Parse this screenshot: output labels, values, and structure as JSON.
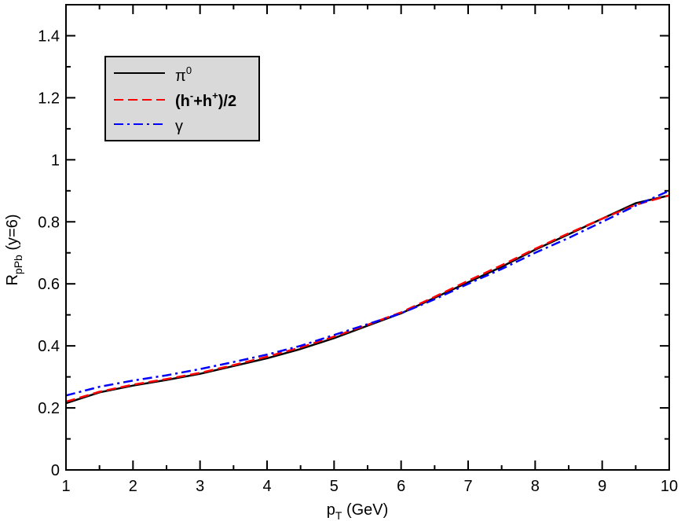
{
  "chart_data": {
    "type": "line",
    "xlim": [
      1,
      10
    ],
    "ylim": [
      0,
      1.5
    ],
    "x_ticks": [
      "1",
      "2",
      "3",
      "4",
      "5",
      "6",
      "7",
      "8",
      "9",
      "10"
    ],
    "y_ticks": [
      "0",
      "0.2",
      "0.4",
      "0.6",
      "0.8",
      "1",
      "1.2",
      "1.4"
    ],
    "xlabel": {
      "main": "p",
      "sub": "T",
      "rest": " (GeV)"
    },
    "ylabel": {
      "main": "R",
      "sub": "pPb",
      "rest": " (y=6)"
    },
    "grid": false,
    "legend_position": "top-left",
    "series": [
      {
        "name": "π⁰",
        "legend": {
          "main": "π",
          "sup": "0"
        },
        "color": "#000000",
        "dash": "solid",
        "x": [
          1,
          1.5,
          2,
          2.5,
          3,
          3.5,
          4,
          4.5,
          5,
          5.5,
          6,
          6.5,
          7,
          7.5,
          8,
          8.5,
          9,
          9.5,
          10
        ],
        "y": [
          0.215,
          0.25,
          0.272,
          0.29,
          0.31,
          0.335,
          0.36,
          0.39,
          0.425,
          0.465,
          0.505,
          0.555,
          0.605,
          0.655,
          0.71,
          0.76,
          0.81,
          0.86,
          0.885
        ]
      },
      {
        "name": "(h⁻+h⁺)/2",
        "legend": {
          "p1": "(h",
          "s1": "-",
          "p2": "+h",
          "s2": "+",
          "p3": ")/2"
        },
        "color": "#ff0000",
        "dash": "dashed",
        "x": [
          1,
          1.5,
          2,
          2.5,
          3,
          3.5,
          4,
          4.5,
          5,
          5.5,
          6,
          6.5,
          7,
          7.5,
          8,
          8.5,
          9,
          9.5,
          10
        ],
        "y": [
          0.22,
          0.252,
          0.275,
          0.293,
          0.313,
          0.338,
          0.365,
          0.395,
          0.43,
          0.468,
          0.508,
          0.558,
          0.61,
          0.66,
          0.713,
          0.763,
          0.81,
          0.855,
          0.885
        ]
      },
      {
        "name": "γ",
        "legend": {
          "main": "γ"
        },
        "color": "#0000ff",
        "dash": "dashdot",
        "x": [
          1,
          1.5,
          2,
          2.5,
          3,
          3.5,
          4,
          4.5,
          5,
          5.5,
          6,
          6.5,
          7,
          7.5,
          8,
          8.5,
          9,
          9.5,
          10
        ],
        "y": [
          0.24,
          0.268,
          0.288,
          0.305,
          0.325,
          0.348,
          0.372,
          0.4,
          0.435,
          0.47,
          0.505,
          0.55,
          0.6,
          0.648,
          0.7,
          0.748,
          0.8,
          0.852,
          0.9
        ]
      }
    ]
  }
}
